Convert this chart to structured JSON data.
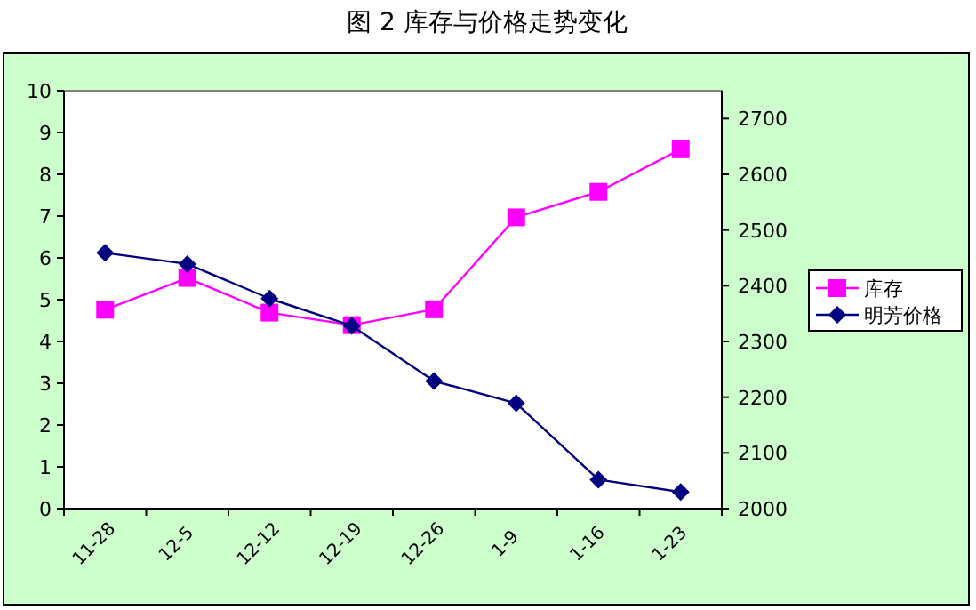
{
  "chart_data": {
    "type": "line",
    "title": "图 2 库存与价格走势变化",
    "categories": [
      "11-28",
      "12-5",
      "12-12",
      "12-19",
      "12-26",
      "1-9",
      "1-16",
      "1-23"
    ],
    "series": [
      {
        "name": "库存",
        "color": "#ff00ff",
        "marker": "square",
        "values": [
          4.76,
          5.52,
          4.69,
          4.39,
          4.77,
          6.97,
          7.58,
          8.6
        ]
      },
      {
        "name": "明芳价格",
        "color": "#000080",
        "marker": "diamond",
        "axis": "y2",
        "values": [
          2459,
          2439,
          2377,
          2328,
          2229,
          2189,
          2052,
          2030
        ]
      }
    ],
    "ylim": [
      0,
      10
    ],
    "yticks": [
      0,
      1,
      2,
      3,
      4,
      5,
      6,
      7,
      8,
      9,
      10
    ],
    "y2lim": [
      2000,
      2750
    ],
    "y2ticks": [
      2000,
      2100,
      2200,
      2300,
      2400,
      2500,
      2600,
      2700
    ],
    "grid": false,
    "legend": "right"
  }
}
